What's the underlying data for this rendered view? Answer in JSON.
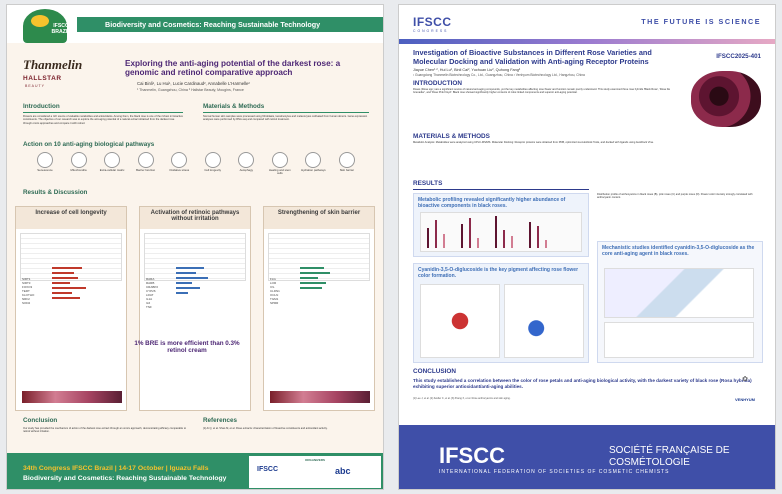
{
  "left": {
    "logo_lines": [
      "34th Congress",
      "IFSCC",
      "BRAZIL",
      "2024"
    ],
    "band": "Biodiversity and Cosmetics: Reaching Sustainable Technology",
    "brand": "Thanmelin",
    "brand_sub": "HALLSTAR",
    "brand_sub2": "BEAUTY",
    "title": "Exploring the anti-aging potential of the darkest rose: a genomic and retinol comparative approach",
    "authors": "Cai Binli¹, Lu Hui¹, Lucie Cardinaud², Annabelle L'Harmelle²",
    "affiliations": "¹ Thanmelin, Guangzhou, China ² Hallstar Beauty, Mougins, France",
    "h_intro": "Introduction",
    "h_methods": "Materials & Methods",
    "intro_text": "Flowers are considered a rich source of valuable metabolites and antioxidants. Among them, the black rose is one of the richest in bioactive constituents. The objective of our research was to explore the anti-aging potential of a natural extract obtained from the darkest rose through omics approaches and compare it with retinol.",
    "methods_text": "Normal human skin samples were processed using fibroblasts, keratinocytes and melanocytes cultivated from human donors. Gene expression analyses were performed by RNA-seq and compared with retinol treatment.",
    "h_action": "Action on 10 anti-aging biological pathways",
    "pathways": [
      "Senescence",
      "Mitochondria",
      "Extra-cellular matrix",
      "Barrier function",
      "Oxidative stress",
      "Cell longevity",
      "Autophagy",
      "Healing and stem cells",
      "Hydration pathways",
      "Skin barrier"
    ],
    "h_results": "Results & Discussion",
    "col1_title": "Increase of cell longevity",
    "col2_title": "Activation of retinoic pathways without irritation",
    "col3_title": "Strengthening of skin barrier",
    "col1_rows": [
      "SIRT1",
      "SIRT3",
      "FOXO3",
      "TERT",
      "KLOTHO",
      "NRF2",
      "SOD2"
    ],
    "col2_rows": [
      "RARA",
      "RARB",
      "CRABP2",
      "CYP26",
      "LRAT",
      "IL1A",
      "IL6",
      "TNF"
    ],
    "col3_rows": [
      "FLG",
      "LOR",
      "IVL",
      "CLDN1",
      "OCLN",
      "TGM1",
      "SPRR"
    ],
    "banner": "1% BRE is more efficient than 0.3% retinol cream",
    "h_conclusion": "Conclusion",
    "h_references": "References",
    "conclusion_text": "Our study has provided the mechanism of action of the darkest rose extract through an omics approach, demonstrating efficacy comparable to retinol without irritation.",
    "references_text": "[1] Ai Q, et al. Shao M, et al. Rose extracts: characterization of bioactive constituents and antioxidant activity.",
    "bottom_line1": "34th Congress IFSCC Brazil | 14-17 October | Iguazu Falls",
    "bottom_line2": "Biodiversity and Cosmetics: Reaching Sustainable Technology",
    "organizers": "ORGANIZERS",
    "org1": "IFSCC",
    "org2": "abc"
  },
  "right": {
    "logo": "IFSCC",
    "logo_sub": "CONGRESS",
    "tagline": "THE FUTURE IS SCIENCE",
    "title": "Investigation of Bioactive Substances in Different Rose Varieties and Molecular Docking and Validation with Anti-aging Receptor Proteins",
    "code": "IFSCC2025-401",
    "authors": "Jiayue Chen¹ ², Hui Lu², Binli Cai², Yuchuan Liu², Quhong Fang²",
    "affiliations": "¹ Guangdong Thanmelin Biotechnology Co., Ltd., Guangzhou, China ² Venhyum Biotechnology Ltd., Hangzhou, China",
    "h_intro": "INTRODUCTION",
    "intro_text": "Roses (Rosa spp.) are a significant source of natural anti-aging compounds, yet the key metabolites affecting rose flower and function remain poorly understood. This study examined three rose hybrids 'Black Rose', 'Rosa De Grenadier', and 'Rose Pink Floyd'. Black rose showed significantly higher contents of color-linked components and superior anti-aging potential.",
    "h_methods": "MATERIALS & METHODS",
    "methods_text": "Metabolic Analysis: Metabolites were analyzed using UPLC-MS/MS. Molecular Docking: Receptor proteins were obtained from PDB, optimized via AutoDock Tools, and docked with ligands using AutoDock Vina.",
    "h_results": "RESULTS",
    "box1_title": "Metabolic profiling revealed significantly higher abundance of bioactive components in black roses.",
    "box2_title": "Cyanidin-3,5-O-diglucoside is the key pigment affecting rose flower color formation.",
    "box3_title": "Mechanistic studies identified cyanidin-3,5-O-diglucoside as the core anti-aging agent in black roses.",
    "results_text": "Distribution profile of anthocyanins in black roses (B), pink roses (C) and purple roses (D). Flower color intensity strongly correlated with anthocyanin content.",
    "h_conclusion": "CONCLUSION",
    "conclusion_text": "This study established a correlation between the color of rose petals and anti-aging biological activity, with the darkest variety of black rose (Rosa hybrida) exhibiting superior antioxidant/anti-aging abilities.",
    "references_text": "[1] Lee J, et al. [2] Zeidler C, et al. [3] Zhang X, et al. Rose anthocyanins and skin aging.",
    "footer_org1": "IFSCC",
    "footer_org1_sub": "INTERNATIONAL FEDERATION OF SOCIETIES OF COSMETIC CHEMISTS",
    "footer_org2": "SOCIÉTÉ FRANÇAISE DE COSMÉTOLOGIE",
    "sponsor": "VENHYUM"
  }
}
